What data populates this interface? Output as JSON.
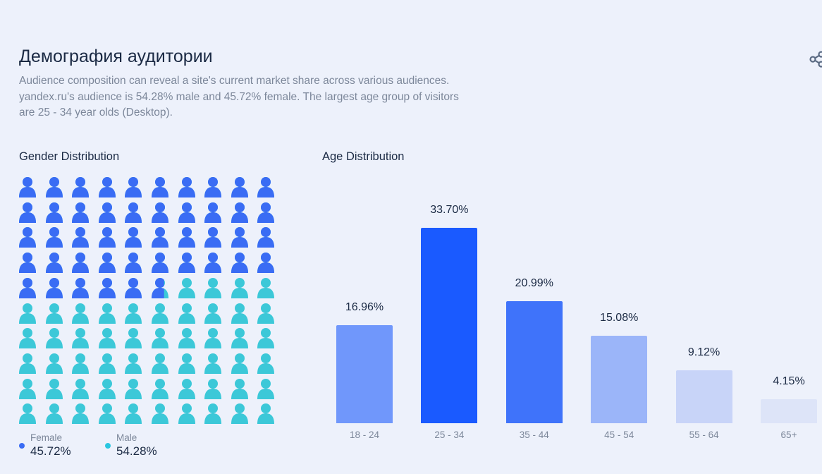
{
  "header": {
    "title": "Демография аудитории",
    "description": "Audience composition can reveal a site's current market share across various audiences. yandex.ru's audience is 54.28% male and 45.72% female. The largest age group of visitors are 25 - 34 year olds (Desktop).",
    "share_icon": "share-icon"
  },
  "gender": {
    "title": "Gender Distribution",
    "female_label": "Female",
    "female_value": "45.72%",
    "male_label": "Male",
    "male_value": "54.28%",
    "female_pct": 45.72,
    "female_color": "#3a6cf4",
    "male_color": "#3cc8d8"
  },
  "chart_data": {
    "type": "bar",
    "title": "Age Distribution",
    "categories": [
      "18 - 24",
      "25 - 34",
      "35 - 44",
      "45 - 54",
      "55 - 64",
      "65+"
    ],
    "values": [
      16.96,
      33.7,
      20.99,
      15.08,
      9.12,
      4.15
    ],
    "labels": [
      "16.96%",
      "33.70%",
      "20.99%",
      "15.08%",
      "9.12%",
      "4.15%"
    ],
    "colors": [
      "#7097fb",
      "#1a5aff",
      "#3f73fa",
      "#9bb5f9",
      "#c8d4f8",
      "#dde4f8"
    ],
    "ylim": [
      0,
      34
    ],
    "xlabel": "",
    "ylabel": ""
  }
}
